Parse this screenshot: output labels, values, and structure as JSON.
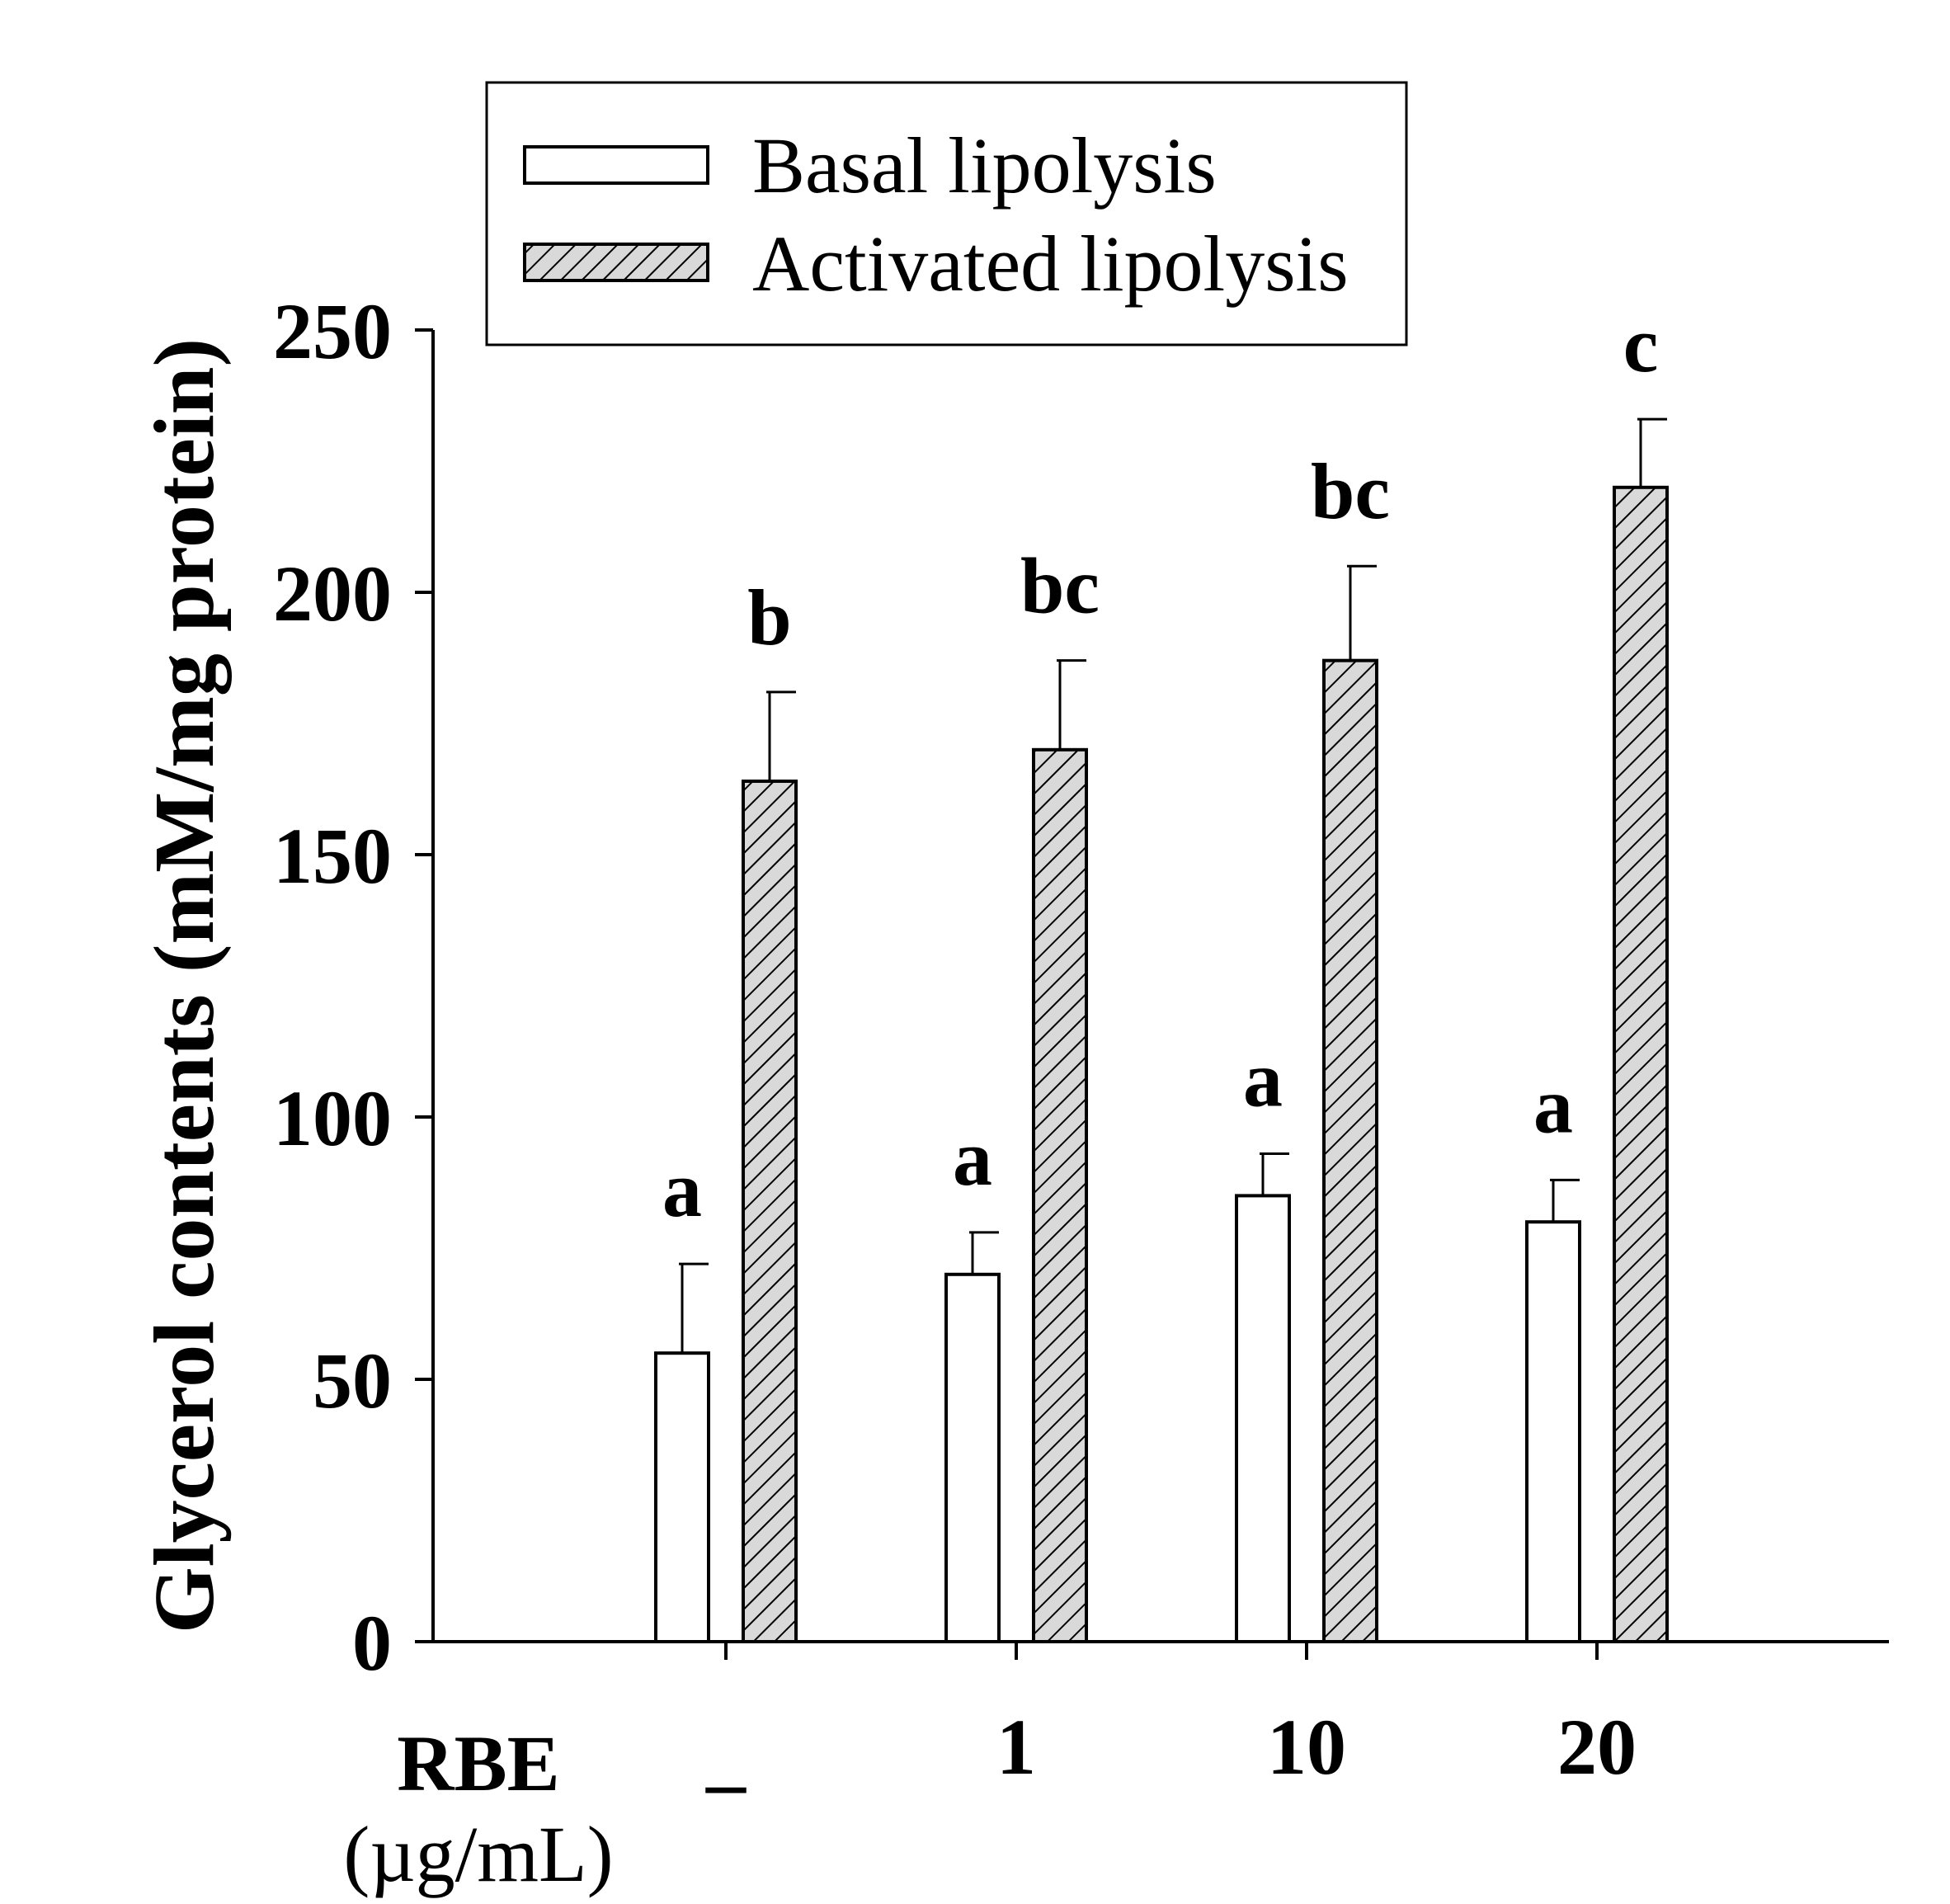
{
  "chart_data": {
    "type": "bar",
    "ylabel": "Glycerol contents (mM/mg protein)",
    "xlabel": "",
    "group_axis_label": {
      "title": "RBE",
      "unit": "(µg/mL)"
    },
    "categories": [
      "_",
      "1",
      "10",
      "20"
    ],
    "ylim": [
      0,
      250
    ],
    "yticks": [
      0,
      50,
      100,
      150,
      200,
      250
    ],
    "legend_position": "top-center",
    "grid": false,
    "series": [
      {
        "name": "Basal lipolysis",
        "values": [
          55,
          70,
          85,
          80
        ],
        "errors": [
          17,
          8,
          8,
          8
        ],
        "significance": [
          "a",
          "a",
          "a",
          "a"
        ],
        "fill": "#ffffff",
        "pattern": "none"
      },
      {
        "name": "Activated lipolysis",
        "values": [
          164,
          170,
          187,
          220
        ],
        "errors": [
          17,
          17,
          18,
          13
        ],
        "significance": [
          "b",
          "bc",
          "bc",
          "c"
        ],
        "fill": "#d9d9d9",
        "pattern": "diagonal-hatch"
      }
    ]
  }
}
